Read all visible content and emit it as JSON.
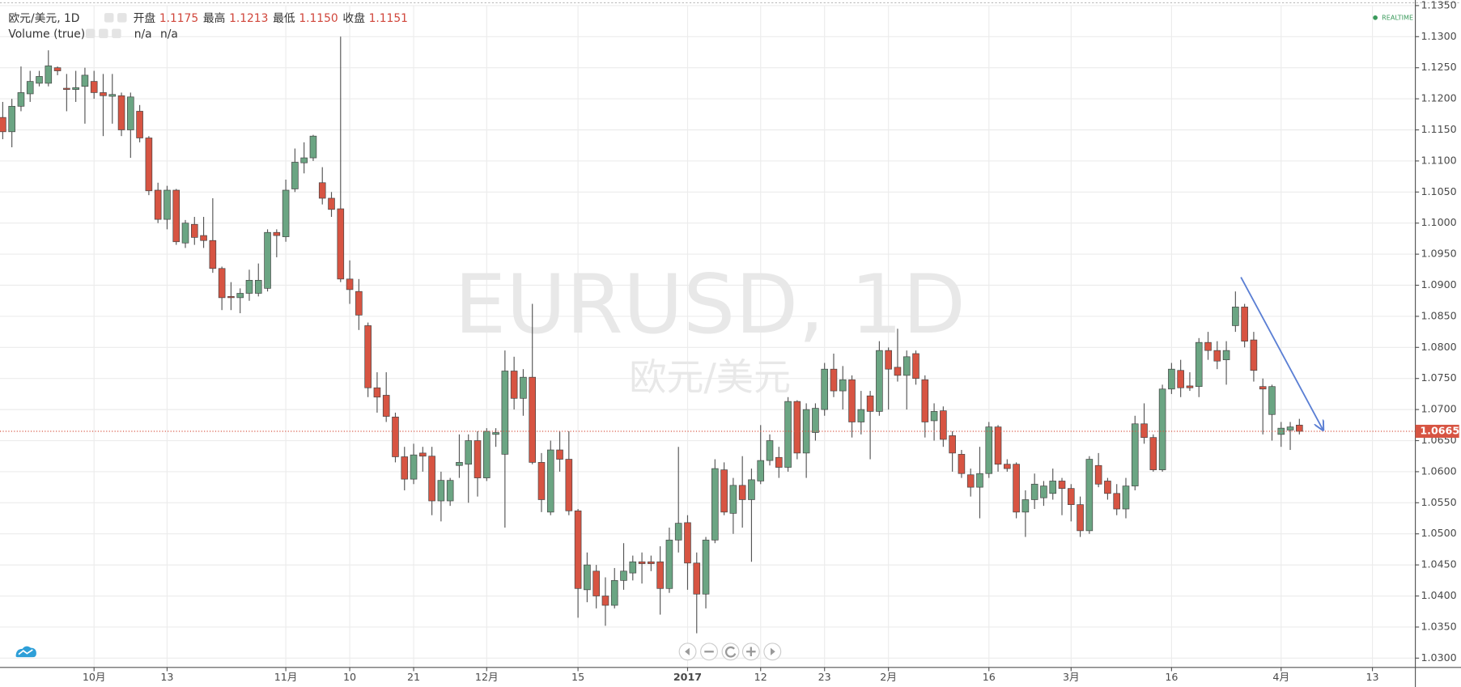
{
  "chart_data": {
    "type": "candlestick",
    "symbol_title": "欧元/美元, 1D",
    "ohlc_readout": [
      {
        "label": "开盘",
        "value": "1.1175"
      },
      {
        "label": "最高",
        "value": "1.1213"
      },
      {
        "label": "最低",
        "value": "1.1150"
      },
      {
        "label": "收盘",
        "value": "1.1151"
      }
    ],
    "volume_title": "Volume (true)",
    "volume_values": [
      "n/a",
      "n/a"
    ],
    "realtime": "REALTIME",
    "watermark": "EURUSD, 1D",
    "watermark_subtitle": "欧元/美元",
    "up_color": "#6ba583",
    "down_color": "#d75442",
    "grid": true,
    "x": [
      0,
      1,
      2,
      3,
      4,
      5,
      6,
      7,
      8,
      9,
      10,
      11,
      12,
      13,
      14,
      15,
      16,
      17,
      18,
      19,
      20,
      21,
      22,
      23,
      24,
      25,
      26,
      27,
      28,
      29,
      30,
      31,
      32,
      33,
      34,
      35,
      36,
      37,
      38,
      39,
      40,
      41,
      42,
      43,
      44,
      45,
      46,
      47,
      48,
      49,
      50,
      51,
      52,
      53,
      54,
      55,
      56,
      57,
      58,
      59,
      60,
      61,
      62,
      63,
      64,
      65,
      66,
      67,
      68,
      69,
      70,
      71,
      72,
      73,
      74,
      75,
      76,
      77,
      78,
      79,
      80,
      81,
      82,
      83,
      84,
      85,
      86,
      87,
      88,
      89,
      90,
      91,
      92,
      93,
      94,
      95,
      96,
      97,
      98,
      99,
      100,
      101,
      102,
      103,
      104,
      105,
      106,
      107,
      108,
      109,
      110,
      111,
      112,
      113,
      114,
      115,
      116,
      117,
      118,
      119,
      120,
      121,
      122,
      123,
      124,
      125,
      126,
      127,
      128,
      129,
      130,
      131,
      132,
      133,
      134,
      135,
      136,
      137,
      138,
      139,
      140,
      141,
      142
    ],
    "open": [
      1.117,
      1.1147,
      1.1188,
      1.1208,
      1.1225,
      1.1225,
      1.125,
      1.1217,
      1.1215,
      1.122,
      1.1228,
      1.121,
      1.1204,
      1.1205,
      1.115,
      1.118,
      1.1137,
      1.1053,
      1.1006,
      1.1053,
      1.0968,
      1.0998,
      1.098,
      1.0972,
      1.0927,
      1.0882,
      1.088,
      1.0887,
      1.0887,
      1.0895,
      1.0985,
      1.0978,
      1.1055,
      1.1097,
      1.1105,
      1.1065,
      1.104,
      1.1023,
      1.091,
      1.089,
      1.0835,
      1.0735,
      1.0723,
      1.0688,
      1.0624,
      1.0588,
      1.063,
      1.0625,
      1.0553,
      1.0553,
      1.061,
      1.0612,
      1.065,
      1.059,
      1.066,
      1.0628,
      1.0762,
      1.0718,
      1.0752,
      1.0615,
      1.0535,
      1.0635,
      1.062,
      1.0537,
      1.041,
      1.044,
      1.04,
      1.0385,
      1.0425,
      1.0437,
      1.0455,
      1.0455,
      1.0455,
      1.0412,
      1.049,
      1.0518,
      1.0453,
      1.0403,
      1.049,
      1.0603,
      1.0533,
      1.0578,
      1.0555,
      1.0585,
      1.0618,
      1.0623,
      1.0607,
      1.0713,
      1.063,
      1.0663,
      1.07,
      1.0765,
      1.073,
      1.0748,
      1.068,
      1.0722,
      1.0697,
      1.0795,
      1.0768,
      1.0755,
      1.079,
      1.0748,
      1.0682,
      1.0698,
      1.0658,
      1.0628,
      1.0595,
      1.0575,
      1.0597,
      1.0672,
      1.0612,
      1.0612,
      1.0535,
      1.0555,
      1.0558,
      1.0565,
      1.0585,
      1.0573,
      1.0547,
      1.0505,
      1.061,
      1.0585,
      1.0565,
      1.054,
      1.0577,
      1.0677,
      1.0655,
      1.0603,
      1.0733,
      1.0763,
      1.0738,
      1.0737,
      1.0808,
      1.0795,
      1.078,
      1.0835,
      1.0865,
      1.0812,
      1.0737,
      1.0692,
      1.066,
      1.0667,
      1.0675
    ],
    "high": [
      1.1195,
      1.12,
      1.1252,
      1.1245,
      1.1245,
      1.1278,
      1.1252,
      1.124,
      1.1245,
      1.125,
      1.1245,
      1.124,
      1.124,
      1.121,
      1.121,
      1.119,
      1.114,
      1.1065,
      1.106,
      1.1055,
      1.1005,
      1.101,
      1.101,
      1.104,
      1.093,
      1.0905,
      1.0895,
      1.0925,
      1.0935,
      1.099,
      1.099,
      1.107,
      1.112,
      1.113,
      1.1142,
      1.109,
      1.105,
      1.13,
      1.094,
      1.091,
      1.084,
      1.076,
      1.076,
      1.0695,
      1.064,
      1.0645,
      1.064,
      1.064,
      1.06,
      1.059,
      1.066,
      1.066,
      1.0665,
      1.067,
      1.067,
      1.0795,
      1.0785,
      1.0765,
      1.087,
      1.063,
      1.065,
      1.0665,
      1.0665,
      1.054,
      1.047,
      1.045,
      1.043,
      1.0445,
      1.0485,
      1.0465,
      1.047,
      1.0465,
      1.048,
      1.051,
      1.064,
      1.053,
      1.047,
      1.0495,
      1.062,
      1.0615,
      1.059,
      1.0625,
      1.0605,
      1.0675,
      1.066,
      1.064,
      1.072,
      1.0715,
      1.071,
      1.071,
      1.0775,
      1.079,
      1.077,
      1.0755,
      1.073,
      1.073,
      1.081,
      1.08,
      1.083,
      1.0795,
      1.0795,
      1.0755,
      1.071,
      1.0705,
      1.0665,
      1.0635,
      1.0605,
      1.064,
      1.068,
      1.0675,
      1.062,
      1.0615,
      1.057,
      1.0597,
      1.0585,
      1.0605,
      1.059,
      1.058,
      1.056,
      1.0625,
      1.063,
      1.059,
      1.058,
      1.059,
      1.069,
      1.071,
      1.066,
      1.074,
      1.0775,
      1.078,
      1.076,
      1.0815,
      1.0825,
      1.081,
      1.081,
      1.089,
      1.087,
      1.0825,
      1.075,
      1.074,
      1.068,
      1.068,
      1.0685
    ],
    "low": [
      1.1135,
      1.1122,
      1.118,
      1.1195,
      1.122,
      1.122,
      1.1238,
      1.118,
      1.1195,
      1.116,
      1.12,
      1.114,
      1.116,
      1.114,
      1.1105,
      1.113,
      1.1045,
      1.1,
      1.099,
      1.0965,
      1.096,
      1.0965,
      1.096,
      1.092,
      1.086,
      1.086,
      1.0855,
      1.0875,
      1.0882,
      1.089,
      1.0945,
      1.097,
      1.105,
      1.108,
      1.11,
      1.103,
      1.101,
      1.0905,
      1.087,
      1.0828,
      1.072,
      1.0695,
      1.068,
      1.0615,
      1.057,
      1.058,
      1.06,
      1.053,
      1.052,
      1.0545,
      1.059,
      1.055,
      1.056,
      1.0585,
      1.064,
      1.051,
      1.07,
      1.069,
      1.0612,
      1.0535,
      1.053,
      1.06,
      1.053,
      1.0365,
      1.039,
      1.038,
      1.0352,
      1.038,
      1.041,
      1.0425,
      1.042,
      1.044,
      1.037,
      1.0405,
      1.047,
      1.041,
      1.034,
      1.038,
      1.0485,
      1.053,
      1.05,
      1.051,
      1.0455,
      1.058,
      1.061,
      1.059,
      1.06,
      1.062,
      1.059,
      1.065,
      1.069,
      1.072,
      1.07,
      1.0655,
      1.066,
      1.062,
      1.069,
      1.07,
      1.0745,
      1.07,
      1.074,
      1.0655,
      1.065,
      1.064,
      1.06,
      1.059,
      1.056,
      1.0525,
      1.059,
      1.06,
      1.06,
      1.0525,
      1.0495,
      1.054,
      1.0545,
      1.0555,
      1.053,
      1.052,
      1.0495,
      1.05,
      1.0575,
      1.0555,
      1.053,
      1.0525,
      1.057,
      1.0645,
      1.06,
      1.06,
      1.0725,
      1.072,
      1.073,
      1.072,
      1.078,
      1.0765,
      1.074,
      1.0825,
      1.08,
      1.0745,
      1.066,
      1.065,
      1.064,
      1.0635,
      1.066
    ],
    "close": [
      1.1147,
      1.1188,
      1.121,
      1.1228,
      1.1236,
      1.1253,
      1.1245,
      1.1215,
      1.1218,
      1.1238,
      1.121,
      1.1205,
      1.1207,
      1.115,
      1.1203,
      1.1137,
      1.1052,
      1.1006,
      1.1053,
      1.097,
      1.1,
      1.0977,
      1.0972,
      1.0927,
      1.088,
      1.088,
      1.0887,
      1.0908,
      1.0908,
      1.0985,
      1.098,
      1.1053,
      1.1098,
      1.1105,
      1.114,
      1.104,
      1.1022,
      1.091,
      1.0893,
      1.0852,
      1.0735,
      1.072,
      1.0689,
      1.0624,
      1.0588,
      1.0627,
      1.0625,
      1.0553,
      1.0586,
      1.0586,
      1.0615,
      1.065,
      1.059,
      1.0665,
      1.0663,
      1.0762,
      1.0718,
      1.0752,
      1.0615,
      1.0555,
      1.0635,
      1.062,
      1.0537,
      1.0412,
      1.045,
      1.04,
      1.0385,
      1.0425,
      1.044,
      1.0455,
      1.0452,
      1.0452,
      1.0412,
      1.049,
      1.0517,
      1.0453,
      1.0403,
      1.049,
      1.0605,
      1.0535,
      1.0578,
      1.0555,
      1.0587,
      1.0618,
      1.065,
      1.0607,
      1.0713,
      1.063,
      1.07,
      1.0702,
      1.0765,
      1.073,
      1.0748,
      1.068,
      1.07,
      1.0697,
      1.0795,
      1.0765,
      1.0755,
      1.0785,
      1.075,
      1.068,
      1.0697,
      1.0652,
      1.063,
      1.0597,
      1.0575,
      1.0597,
      1.0672,
      1.0612,
      1.0605,
      1.0535,
      1.0555,
      1.058,
      1.0577,
      1.0585,
      1.0573,
      1.0547,
      1.0505,
      1.062,
      1.058,
      1.0565,
      1.054,
      1.0577,
      1.0677,
      1.0655,
      1.0603,
      1.0733,
      1.0765,
      1.0735,
      1.0735,
      1.0808,
      1.0795,
      1.0778,
      1.0795,
      1.0865,
      1.081,
      1.0763,
      1.0733,
      1.0737,
      1.067,
      1.0672,
      1.0665
    ],
    "last_price": {
      "value": 1.0665,
      "label": "1.0665"
    },
    "trendline": {
      "color": "#5b7fd4",
      "x": [
        135.6,
        144.6
      ],
      "y": [
        1.0913,
        1.0667
      ]
    },
    "xlim": [
      -0.3,
      154.7
    ],
    "xticks": [
      {
        "value": 10,
        "label": "10月"
      },
      {
        "value": 18,
        "label": "13"
      },
      {
        "value": 31,
        "label": "11月"
      },
      {
        "value": 38,
        "label": "10"
      },
      {
        "value": 45,
        "label": "21"
      },
      {
        "value": 53,
        "label": "12月"
      },
      {
        "value": 63,
        "label": "15"
      },
      {
        "value": 75,
        "label": "2017"
      },
      {
        "value": 83,
        "label": "12"
      },
      {
        "value": 90,
        "label": "23"
      },
      {
        "value": 97,
        "label": "2月"
      },
      {
        "value": 108,
        "label": "16"
      },
      {
        "value": 117,
        "label": "3月"
      },
      {
        "value": 128,
        "label": "16"
      },
      {
        "value": 140,
        "label": "4月"
      },
      {
        "value": 150,
        "label": "13"
      }
    ],
    "ylim": [
      1.0285,
      1.135
    ],
    "yticks": [
      {
        "value": 1.03,
        "label": "1.0300"
      },
      {
        "value": 1.035,
        "label": "1.0350"
      },
      {
        "value": 1.04,
        "label": "1.0400"
      },
      {
        "value": 1.045,
        "label": "1.0450"
      },
      {
        "value": 1.05,
        "label": "1.0500"
      },
      {
        "value": 1.055,
        "label": "1.0550"
      },
      {
        "value": 1.06,
        "label": "1.0600"
      },
      {
        "value": 1.065,
        "label": "1.0650"
      },
      {
        "value": 1.07,
        "label": "1.0700"
      },
      {
        "value": 1.075,
        "label": "1.0750"
      },
      {
        "value": 1.08,
        "label": "1.0800"
      },
      {
        "value": 1.085,
        "label": "1.0850"
      },
      {
        "value": 1.09,
        "label": "1.0900"
      },
      {
        "value": 1.095,
        "label": "1.0950"
      },
      {
        "value": 1.1,
        "label": "1.1000"
      },
      {
        "value": 1.105,
        "label": "1.1050"
      },
      {
        "value": 1.11,
        "label": "1.1100"
      },
      {
        "value": 1.115,
        "label": "1.1150"
      },
      {
        "value": 1.12,
        "label": "1.1200"
      },
      {
        "value": 1.125,
        "label": "1.1250"
      },
      {
        "value": 1.13,
        "label": "1.1300"
      },
      {
        "value": 1.135,
        "label": "1.1350"
      }
    ]
  }
}
